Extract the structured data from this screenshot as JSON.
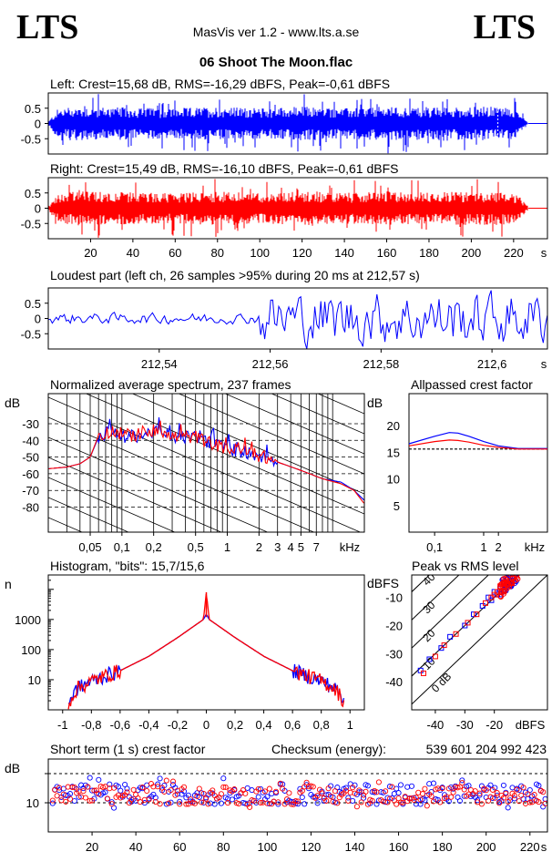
{
  "header": {
    "logo_left": "LTS",
    "logo_right": "LTS",
    "app": "MasVis ver 1.2 - www.lts.a.se",
    "filename": "06 Shoot The Moon.flac"
  },
  "colors": {
    "left": "#0000ff",
    "right": "#ff0000",
    "axis": "#000000",
    "grid": "#000000"
  },
  "chart_data": [
    {
      "id": "left_waveform",
      "type": "area",
      "title": "Left: Crest=15,68 dB, RMS=-16,29 dBFS, Peak=-0,61 dBFS",
      "crest_db": 15.68,
      "rms_dbfs": -16.29,
      "peak_dbfs": -0.61,
      "yticks": [
        "0.5",
        "0",
        "-0.5"
      ],
      "ylim": [
        -1,
        1
      ],
      "duration_s": 227,
      "loudest_marker_s": 212.57,
      "envelope": {
        "t": [
          0,
          4,
          10,
          20,
          40,
          60,
          80,
          100,
          120,
          140,
          160,
          180,
          200,
          215,
          220,
          224,
          226,
          227
        ],
        "amp": [
          0.05,
          0.45,
          0.55,
          0.55,
          0.52,
          0.5,
          0.55,
          0.5,
          0.56,
          0.5,
          0.55,
          0.52,
          0.55,
          0.55,
          0.5,
          0.3,
          0.1,
          0.0
        ]
      }
    },
    {
      "id": "right_waveform",
      "type": "area",
      "title": "Right: Crest=15,49 dB, RMS=-16,10 dBFS, Peak=-0,61 dBFS",
      "crest_db": 15.49,
      "rms_dbfs": -16.1,
      "peak_dbfs": -0.61,
      "yticks": [
        "0.5",
        "0",
        "-0.5"
      ],
      "ylim": [
        -1,
        1
      ],
      "xticks": [
        20,
        40,
        60,
        80,
        100,
        120,
        140,
        160,
        180,
        200,
        220
      ],
      "xunit": "s",
      "duration_s": 227,
      "envelope": {
        "t": [
          0,
          4,
          10,
          20,
          40,
          60,
          80,
          100,
          120,
          140,
          160,
          180,
          200,
          215,
          220,
          224,
          226,
          227
        ],
        "amp": [
          0.05,
          0.45,
          0.55,
          0.55,
          0.52,
          0.5,
          0.55,
          0.5,
          0.56,
          0.5,
          0.55,
          0.52,
          0.55,
          0.55,
          0.5,
          0.3,
          0.1,
          0.0
        ]
      }
    },
    {
      "id": "loudest_part",
      "type": "line",
      "title": "Loudest part (left  ch, 26 samples >95% during 20 ms at 212,57 s)",
      "yticks": [
        "0.5",
        "0",
        "-0.5"
      ],
      "ylim": [
        -1,
        1
      ],
      "xlim": [
        212.52,
        212.61
      ],
      "xticks": [
        "212,54",
        "212,56",
        "212,58",
        "212,6"
      ],
      "xtick_values": [
        212.54,
        212.56,
        212.58,
        212.6
      ],
      "xunit": "s",
      "series": [
        {
          "color": "#0000ff",
          "segments": [
            {
              "x0": 212.52,
              "x1": 212.558,
              "amp": 0.15
            },
            {
              "x0": 212.558,
              "x1": 212.61,
              "amp": 0.75
            }
          ]
        }
      ]
    },
    {
      "id": "spectrum",
      "type": "line",
      "title": "Normalized average spectrum, 237 frames",
      "ylabel": "dB",
      "yticks": [
        -30,
        -40,
        -50,
        -60,
        -70,
        -80
      ],
      "ylim": [
        -95,
        -12
      ],
      "xlabel": "kHz",
      "xscale": "log",
      "xlim_khz": [
        0.02,
        20
      ],
      "xticks": [
        "0,05",
        "0,1",
        "0,2",
        "0,5",
        "1",
        "2",
        "3",
        "4",
        "5",
        "7"
      ],
      "xtick_values": [
        0.05,
        0.1,
        0.2,
        0.5,
        1,
        2,
        3,
        4,
        5,
        7
      ],
      "series": [
        {
          "color": "#0000ff",
          "x": [
            0.02,
            0.03,
            0.04,
            0.05,
            0.06,
            0.08,
            0.1,
            0.15,
            0.2,
            0.3,
            0.5,
            0.8,
            1,
            2,
            3,
            5,
            8,
            12,
            16,
            20
          ],
          "y": [
            -57,
            -56,
            -54,
            -50,
            -38,
            -35,
            -38,
            -37,
            -35,
            -38,
            -38,
            -43,
            -45,
            -49,
            -53,
            -58,
            -63,
            -65,
            -70,
            -76
          ]
        },
        {
          "color": "#ff0000",
          "x": [
            0.02,
            0.03,
            0.04,
            0.05,
            0.06,
            0.08,
            0.1,
            0.15,
            0.2,
            0.3,
            0.5,
            0.8,
            1,
            2,
            3,
            5,
            8,
            12,
            16,
            20
          ],
          "y": [
            -57,
            -56,
            -54,
            -50,
            -37,
            -34,
            -37,
            -37,
            -35,
            -38,
            -38,
            -43,
            -45,
            -49,
            -53,
            -58,
            -63,
            -66,
            -70,
            -78
          ]
        }
      ]
    },
    {
      "id": "allpassed_crest",
      "type": "line",
      "title": "Allpassed crest factor",
      "ylabel": "dB",
      "yticks": [
        20,
        15,
        10,
        5
      ],
      "ylim": [
        0,
        26
      ],
      "xlabel": "kHz",
      "xscale": "log",
      "xlim_khz": [
        0.03,
        20
      ],
      "xticks": [
        "0,1",
        "1",
        "2"
      ],
      "xtick_values": [
        0.1,
        1,
        2
      ],
      "reference_db": 15.6,
      "series": [
        {
          "color": "#0000ff",
          "x": [
            0.03,
            0.1,
            0.2,
            0.3,
            0.5,
            1,
            2,
            5,
            20
          ],
          "y": [
            16.6,
            18.0,
            18.7,
            18.6,
            18.0,
            17.0,
            16.2,
            15.7,
            15.7
          ]
        },
        {
          "color": "#ff0000",
          "x": [
            0.03,
            0.1,
            0.2,
            0.3,
            0.5,
            1,
            2,
            5,
            20
          ],
          "y": [
            16.2,
            17.0,
            17.3,
            17.2,
            16.9,
            16.3,
            15.9,
            15.6,
            15.6
          ]
        }
      ]
    },
    {
      "id": "histogram",
      "type": "line",
      "title": "Histogram, \"bits\": 15,7/15,6",
      "ylabel": "n",
      "yscale": "log",
      "yticks": [
        "1000",
        "100",
        "10"
      ],
      "ytick_values": [
        1000,
        100,
        10
      ],
      "ylim": [
        1,
        30000
      ],
      "xlim": [
        -1.1,
        1.1
      ],
      "xticks": [
        "-1",
        "-0,8",
        "-0,6",
        "-0,4",
        "-0,2",
        "0",
        "0,2",
        "0,4",
        "0,6",
        "0,8",
        "1"
      ],
      "xtick_values": [
        -1,
        -0.8,
        -0.6,
        -0.4,
        -0.2,
        0,
        0.2,
        0.4,
        0.6,
        0.8,
        1
      ],
      "series": [
        {
          "color": "#0000ff",
          "x": [
            -0.95,
            -0.9,
            -0.8,
            -0.6,
            -0.4,
            -0.2,
            -0.02,
            0,
            0.02,
            0.2,
            0.4,
            0.6,
            0.8,
            0.9,
            0.95
          ],
          "y": [
            2,
            5,
            9,
            20,
            60,
            250,
            1000,
            1500,
            1000,
            250,
            60,
            20,
            9,
            5,
            2
          ]
        },
        {
          "color": "#ff0000",
          "x": [
            -0.95,
            -0.9,
            -0.8,
            -0.6,
            -0.4,
            -0.2,
            -0.02,
            0,
            0.02,
            0.2,
            0.4,
            0.6,
            0.8,
            0.9,
            0.95
          ],
          "y": [
            2,
            5,
            9,
            20,
            60,
            250,
            1000,
            8000,
            1000,
            250,
            60,
            20,
            9,
            5,
            2
          ]
        }
      ]
    },
    {
      "id": "peak_vs_rms",
      "type": "scatter",
      "title": "Peak vs RMS level",
      "ylabel": "dBFS",
      "yticks": [
        -10,
        -20,
        -30,
        -40
      ],
      "ylim": [
        -50,
        -2
      ],
      "xlabel": "dBFS",
      "xticks": [
        -40,
        -30,
        -20
      ],
      "xlim": [
        -48,
        -2
      ],
      "diagonals": [
        "40",
        "30",
        "20",
        "10",
        "0 dB"
      ],
      "diagonal_values": [
        40,
        30,
        20,
        10,
        0
      ],
      "series": [
        {
          "color": "#0000ff",
          "points": [
            [
              -45,
              -36
            ],
            [
              -42,
              -32
            ],
            [
              -38,
              -28
            ],
            [
              -35,
              -24
            ],
            [
              -30,
              -20
            ],
            [
              -27,
              -16
            ],
            [
              -24,
              -13
            ],
            [
              -22,
              -10
            ],
            [
              -20,
              -8
            ],
            [
              -18,
              -7
            ],
            [
              -17,
              -6
            ],
            [
              -19,
              -9
            ],
            [
              -21,
              -11
            ],
            [
              -16,
              -6
            ],
            [
              -15,
              -5
            ]
          ]
        },
        {
          "color": "#ff0000",
          "points": [
            [
              -44,
              -37
            ],
            [
              -40,
              -31
            ],
            [
              -37,
              -27
            ],
            [
              -33,
              -23
            ],
            [
              -29,
              -19
            ],
            [
              -26,
              -16
            ],
            [
              -23,
              -12
            ],
            [
              -21,
              -10
            ],
            [
              -19,
              -8
            ],
            [
              -18,
              -6
            ],
            [
              -17,
              -6
            ],
            [
              -16,
              -5
            ],
            [
              -15,
              -6
            ],
            [
              -14,
              -5
            ],
            [
              -20,
              -9
            ]
          ]
        }
      ]
    },
    {
      "id": "short_term_crest",
      "type": "scatter",
      "title": "Short term (1 s) crest factor",
      "checksum_label": "Checksum (energy):",
      "checksum_value": "539 601 204 992 423",
      "ylabel": "dB",
      "yticks": [
        "10"
      ],
      "ytick_values": [
        10
      ],
      "ylim": [
        0,
        25
      ],
      "reference_lines": [
        10,
        20
      ],
      "xticks": [
        20,
        40,
        60,
        80,
        100,
        120,
        140,
        160,
        180,
        200,
        220
      ],
      "xunit": "s",
      "xlim": [
        0,
        228
      ],
      "series": [
        {
          "color": "#0000ff",
          "mean": 13.0,
          "spread": 3.5,
          "start": 2,
          "count": 226
        },
        {
          "color": "#ff0000",
          "mean": 12.6,
          "spread": 3.2,
          "start": 2,
          "count": 226
        }
      ]
    }
  ]
}
